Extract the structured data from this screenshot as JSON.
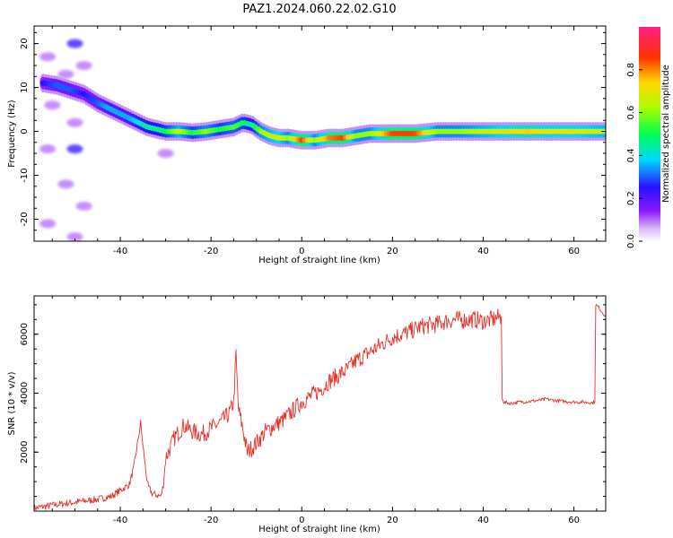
{
  "figure_title": "PAZ1.2024.060.22.02.G10",
  "colors": {
    "snr_line": "#e8302a",
    "heatmap_background": "#ffffff"
  },
  "chart_data": [
    {
      "type": "heatmap",
      "title": "",
      "xlabel": "Height of straight line (km)",
      "ylabel": "Frequency (Hz)",
      "xlim": [
        -59,
        67
      ],
      "ylim": [
        -25,
        24
      ],
      "xticks": [
        -40,
        -20,
        0,
        20,
        40,
        60
      ],
      "xtick_labels": [
        "-40",
        "-20",
        "0",
        "20",
        "40",
        "60"
      ],
      "yticks": [
        -20,
        -10,
        0,
        10,
        20
      ],
      "ytick_labels": [
        "-20",
        "-10",
        "0",
        "10",
        "20"
      ],
      "colorbar": {
        "label": "Normalized spectral amplitude",
        "range": [
          0,
          1
        ],
        "ticks": [
          0.0,
          0.2,
          0.4,
          0.6,
          0.8
        ],
        "tick_labels": [
          "0.0",
          "0.2",
          "0.4",
          "0.6",
          "0.8"
        ],
        "colormap": "gist_rainbow_reversed_white_low"
      },
      "ridge": {
        "x": [
          -57,
          -54,
          -51,
          -48,
          -45,
          -43,
          -40,
          -38,
          -36,
          -34,
          -32,
          -30,
          -27,
          -24,
          -21,
          -18,
          -15,
          -13,
          -11,
          -9,
          -7,
          -5,
          -3,
          0,
          3,
          6,
          9,
          12,
          15,
          20,
          25,
          30,
          35,
          40,
          45,
          50,
          55,
          60,
          67
        ],
        "y": [
          11,
          10.5,
          9.5,
          8.5,
          6.5,
          5.5,
          4,
          3,
          2,
          1,
          0.5,
          0,
          0,
          -0.3,
          0,
          0.5,
          1,
          2,
          1.5,
          0,
          -1,
          -1.5,
          -1.5,
          -2,
          -2,
          -1.5,
          -1.5,
          -1,
          -0.5,
          -0.5,
          -0.5,
          0,
          0,
          0,
          0,
          0,
          0,
          0,
          0
        ],
        "amplitude": [
          0.25,
          0.3,
          0.3,
          0.25,
          0.3,
          0.35,
          0.35,
          0.35,
          0.4,
          0.45,
          0.45,
          0.5,
          0.65,
          0.5,
          0.6,
          0.5,
          0.55,
          0.5,
          0.45,
          0.6,
          0.65,
          0.7,
          0.6,
          0.85,
          0.6,
          0.8,
          0.85,
          0.6,
          0.6,
          0.85,
          0.85,
          0.6,
          0.6,
          0.65,
          0.7,
          0.75,
          0.7,
          0.7,
          0.65
        ]
      },
      "noise_clusters": [
        {
          "x": -50,
          "y": 20,
          "amplitude": 0.25
        },
        {
          "x": -56,
          "y": 17,
          "amplitude": 0.1
        },
        {
          "x": -52,
          "y": 13,
          "amplitude": 0.1
        },
        {
          "x": -48,
          "y": 15,
          "amplitude": 0.1
        },
        {
          "x": -55,
          "y": 6,
          "amplitude": 0.1
        },
        {
          "x": -50,
          "y": 2,
          "amplitude": 0.1
        },
        {
          "x": -56,
          "y": -4,
          "amplitude": 0.1
        },
        {
          "x": -50,
          "y": -4,
          "amplitude": 0.25
        },
        {
          "x": -52,
          "y": -12,
          "amplitude": 0.1
        },
        {
          "x": -48,
          "y": -17,
          "amplitude": 0.1
        },
        {
          "x": -56,
          "y": -21,
          "amplitude": 0.1
        },
        {
          "x": -50,
          "y": -24,
          "amplitude": 0.1
        },
        {
          "x": -30,
          "y": -5,
          "amplitude": 0.1
        }
      ]
    },
    {
      "type": "line",
      "title": "",
      "xlabel": "Height of straight line (km)",
      "ylabel": "SNR (10 * v/v)",
      "xlim": [
        -59,
        67
      ],
      "ylim": [
        0,
        7300
      ],
      "xticks": [
        -40,
        -20,
        0,
        20,
        40,
        60
      ],
      "xtick_labels": [
        "-40",
        "-20",
        "0",
        "20",
        "40",
        "60"
      ],
      "yticks": [
        2000,
        4000,
        6000
      ],
      "ytick_labels": [
        "2000",
        "4000",
        "6000"
      ],
      "series": [
        {
          "x": [
            -59,
            -55,
            -50,
            -45,
            -42,
            -40,
            -38,
            -37,
            -36,
            -35.5,
            -35,
            -34,
            -33,
            -31,
            -30.5,
            -30,
            -28,
            -26,
            -24,
            -22,
            -20,
            -18,
            -16,
            -15,
            -14.5,
            -14,
            -13,
            -12,
            -10,
            -8,
            -6,
            -4,
            -2,
            0,
            2,
            4,
            6,
            8,
            10,
            12,
            14,
            16,
            18,
            20,
            22,
            24,
            26,
            28,
            30,
            32,
            34,
            36,
            38,
            40,
            42,
            44,
            44.2,
            44.5,
            46,
            48,
            50,
            52,
            54,
            56,
            58,
            60,
            62,
            64,
            64.6,
            64.8,
            65.5,
            66,
            67
          ],
          "y": [
            100,
            200,
            300,
            400,
            500,
            700,
            900,
            1500,
            2500,
            3000,
            2200,
            900,
            600,
            500,
            900,
            1800,
            2500,
            2900,
            2700,
            2600,
            2800,
            3000,
            3300,
            3700,
            5300,
            3500,
            2800,
            2000,
            2300,
            2700,
            2900,
            3100,
            3400,
            3700,
            3900,
            4100,
            4400,
            4600,
            4800,
            5100,
            5300,
            5500,
            5700,
            5900,
            6000,
            6100,
            6250,
            6300,
            6350,
            6450,
            6500,
            6480,
            6500,
            6450,
            6500,
            6600,
            3800,
            3700,
            3650,
            3700,
            3720,
            3750,
            3800,
            3750,
            3720,
            3700,
            3700,
            3680,
            3700,
            7000,
            6900,
            6800,
            6600
          ]
        }
      ]
    }
  ]
}
